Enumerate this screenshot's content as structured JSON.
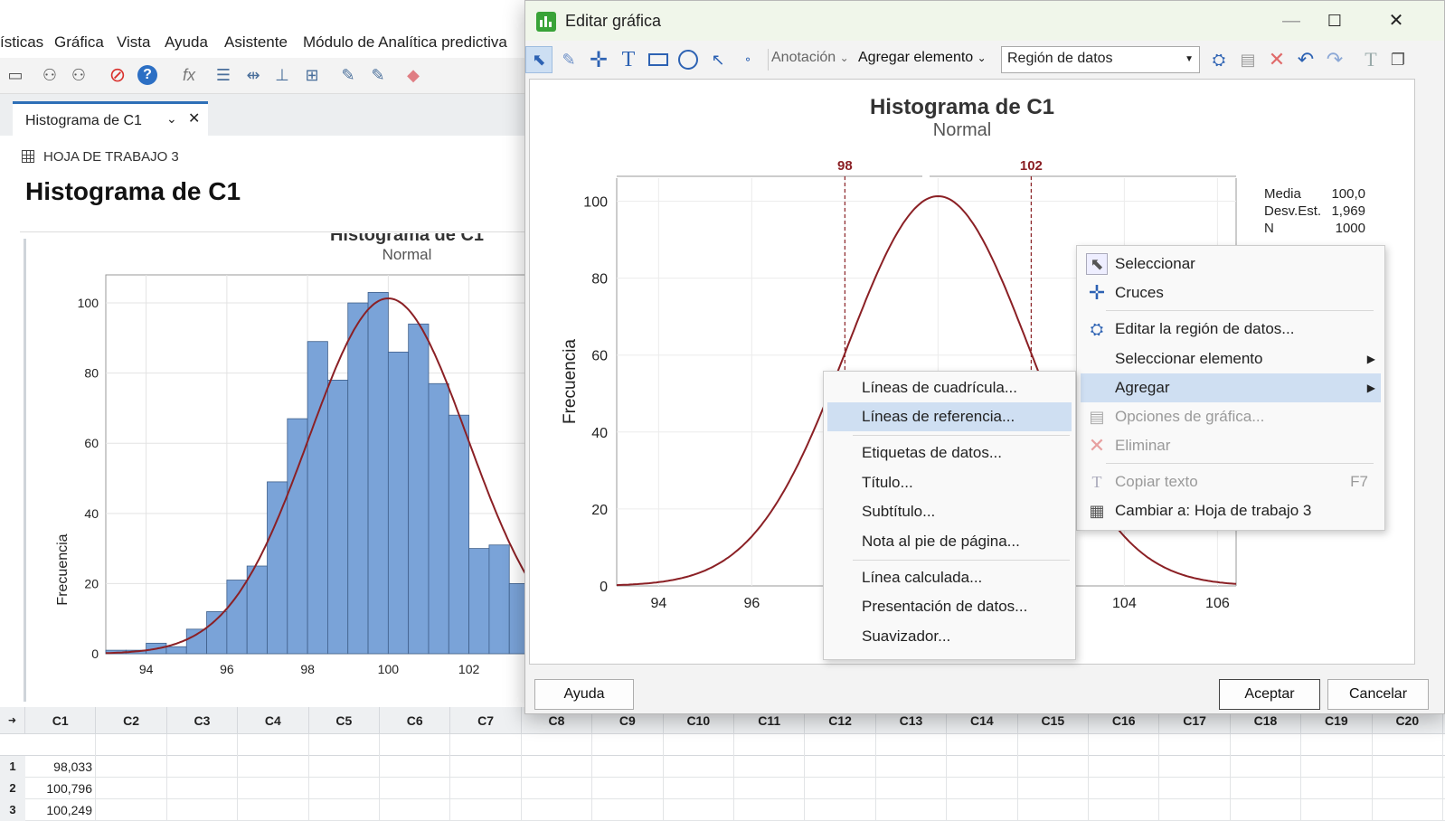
{
  "app": {
    "menu": [
      "ísticas",
      "Gráfica",
      "Vista",
      "Ayuda",
      "Asistente",
      "Módulo de Analítica predictiva"
    ],
    "tab_label": "Histograma de C1",
    "worksheet_label": "HOJA DE TRABAJO 3",
    "output_title": "Histograma de C1",
    "toolbar_icons": [
      "window-icon",
      "binoculars-icon",
      "binoculars-next-icon",
      "stop-icon",
      "help-icon",
      "fx-icon",
      "layout-icon",
      "align-icon",
      "distribute-icon",
      "group-icon",
      "brush-icon",
      "brush-alt-icon",
      "eraser-icon"
    ]
  },
  "bg_chart": {
    "title": "Histograma de C1",
    "subtitle": "Normal",
    "ylabel": "Frecuencia",
    "xticks": [
      94,
      96,
      98,
      100,
      102
    ],
    "yticks": [
      0,
      20,
      40,
      60,
      80,
      100
    ]
  },
  "chart_data": {
    "type": "bar",
    "title": "Histograma de C1",
    "subtitle": "Normal",
    "ylabel": "Frecuencia",
    "bin_width": 0.5,
    "bins_start": [
      93.0,
      93.5,
      94.0,
      94.5,
      95.0,
      95.5,
      96.0,
      96.5,
      97.0,
      97.5,
      98.0,
      98.5,
      99.0,
      99.5,
      100.0,
      100.5,
      101.0,
      101.5,
      102.0,
      102.5,
      103.0
    ],
    "values": [
      1,
      1,
      3,
      2,
      7,
      12,
      21,
      25,
      49,
      67,
      89,
      78,
      100,
      103,
      86,
      94,
      77,
      68,
      30,
      31,
      20
    ],
    "fit": {
      "type": "normal",
      "mean": 100.0,
      "stdev": 1.969,
      "n": 1000
    },
    "ylim": [
      0,
      108
    ],
    "xlim": [
      93,
      106.5
    ]
  },
  "dialog": {
    "title": "Editar gráfica",
    "toolbar": {
      "annotation": "Anotación",
      "add_element": "Agregar elemento",
      "region": "Región de datos",
      "tools": [
        "select-icon",
        "brush-icon",
        "crosshair-icon",
        "text-icon",
        "rectangle-icon",
        "ellipse-icon",
        "arrow-icon",
        "point-icon"
      ],
      "right_tools": [
        "edit-region-icon",
        "options-icon",
        "delete-icon",
        "undo-icon",
        "redo-icon",
        "copy-text-icon",
        "switch-icon"
      ]
    },
    "chart": {
      "title": "Histograma de C1",
      "subtitle": "Normal",
      "ylabel": "Frecuencia",
      "xticks": [
        94,
        96,
        98,
        100,
        102,
        104,
        106
      ],
      "yticks": [
        0,
        20,
        40,
        60,
        80,
        100
      ],
      "ref_lines": [
        98,
        102
      ],
      "stats": [
        {
          "label": "Media",
          "value": "100,0"
        },
        {
          "label": "Desv.Est.",
          "value": "1,969"
        },
        {
          "label": "N",
          "value": "1000"
        }
      ]
    },
    "buttons": {
      "help": "Ayuda",
      "ok": "Aceptar",
      "cancel": "Cancelar"
    }
  },
  "context_menu": {
    "items": [
      {
        "label": "Seleccionar",
        "icon": "pointer-icon"
      },
      {
        "label": "Cruces",
        "icon": "crosshair-icon"
      },
      {
        "label": "Editar la región de datos...",
        "icon": "edit-region-icon"
      },
      {
        "label": "Seleccionar elemento",
        "submenu": true
      },
      {
        "label": "Agregar",
        "submenu": true,
        "highlighted": true
      },
      {
        "label": "Opciones de gráfica...",
        "icon": "options-icon",
        "disabled": true
      },
      {
        "label": "Eliminar",
        "icon": "delete-icon",
        "disabled": true
      },
      {
        "label": "Copiar texto",
        "shortcut": "F7",
        "icon": "copy-text-icon",
        "disabled": true
      },
      {
        "label": "Cambiar a: Hoja de trabajo 3",
        "icon": "worksheet-icon"
      }
    ]
  },
  "submenu": {
    "items": [
      "Líneas de cuadrícula...",
      "Líneas de referencia...",
      "Etiquetas de datos...",
      "Título...",
      "Subtítulo...",
      "Nota al pie de página...",
      "Línea calculada...",
      "Presentación de datos...",
      "Suavizador..."
    ],
    "highlighted_index": 1
  },
  "worksheet": {
    "columns": [
      "C1",
      "C2",
      "C3",
      "C4",
      "C5",
      "C6",
      "C7",
      "C8",
      "C9",
      "C10",
      "C11",
      "C12",
      "C13",
      "C14",
      "C15",
      "C16",
      "C17",
      "C18",
      "C19",
      "C20"
    ],
    "rows": [
      {
        "n": "1",
        "c1": "98,033"
      },
      {
        "n": "2",
        "c1": "100,796"
      },
      {
        "n": "3",
        "c1": "100,249"
      }
    ]
  },
  "colors": {
    "bar_fill": "#7aa3d8",
    "bar_stroke": "#3f5f8a",
    "curve": "#8b2025",
    "highlight": "#cfdff2"
  }
}
